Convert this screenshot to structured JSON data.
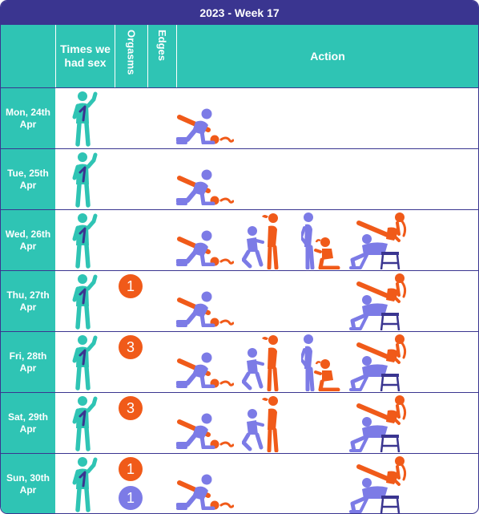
{
  "title": "2023 - Week 17",
  "headers": {
    "day": "",
    "times": "Times we had sex",
    "orgasms": "Orgasms",
    "edges": "Edges",
    "action": "Action"
  },
  "colors": {
    "navy": "#3a3590",
    "teal": "#2fc4b4",
    "orange": "#f05a19",
    "purple": "#7c7be6"
  },
  "rows": [
    {
      "day": [
        "Mon, 24th",
        "Apr"
      ],
      "times_icon": "man-standing-one-icon",
      "orgasms": [],
      "actions": [
        "prone-position-icon"
      ]
    },
    {
      "day": [
        "Tue, 25th",
        "Apr"
      ],
      "times_icon": "man-standing-one-icon",
      "orgasms": [],
      "actions": [
        "prone-position-icon"
      ]
    },
    {
      "day": [
        "Wed, 26th",
        "Apr"
      ],
      "times_icon": "man-standing-one-icon",
      "orgasms": [],
      "actions": [
        "prone-position-icon",
        "kneeling-oral-icon",
        "standing-oral-icon",
        "chair-bent-over-icon"
      ]
    },
    {
      "day": [
        "Thu, 27th",
        "Apr"
      ],
      "times_icon": "man-standing-one-icon",
      "orgasms": [
        {
          "value": "1",
          "color": "orange"
        }
      ],
      "actions": [
        "prone-position-icon",
        "chair-bent-over-icon"
      ]
    },
    {
      "day": [
        "Fri, 28th",
        "Apr"
      ],
      "times_icon": "man-standing-one-icon",
      "orgasms": [
        {
          "value": "3",
          "color": "orange"
        }
      ],
      "actions": [
        "prone-position-icon",
        "kneeling-oral-icon",
        "standing-oral-icon",
        "chair-bent-over-icon"
      ]
    },
    {
      "day": [
        "Sat, 29th",
        "Apr"
      ],
      "times_icon": "man-standing-one-icon",
      "orgasms": [
        {
          "value": "3",
          "color": "orange"
        }
      ],
      "actions": [
        "prone-position-icon",
        "kneeling-oral-icon",
        "chair-bent-over-icon"
      ]
    },
    {
      "day": [
        "Sun, 30th",
        "Apr"
      ],
      "times_icon": "man-standing-one-icon",
      "orgasms": [
        {
          "value": "1",
          "color": "orange"
        },
        {
          "value": "1",
          "color": "purple"
        }
      ],
      "actions": [
        "prone-position-icon",
        "chair-bent-over-icon"
      ]
    }
  ]
}
